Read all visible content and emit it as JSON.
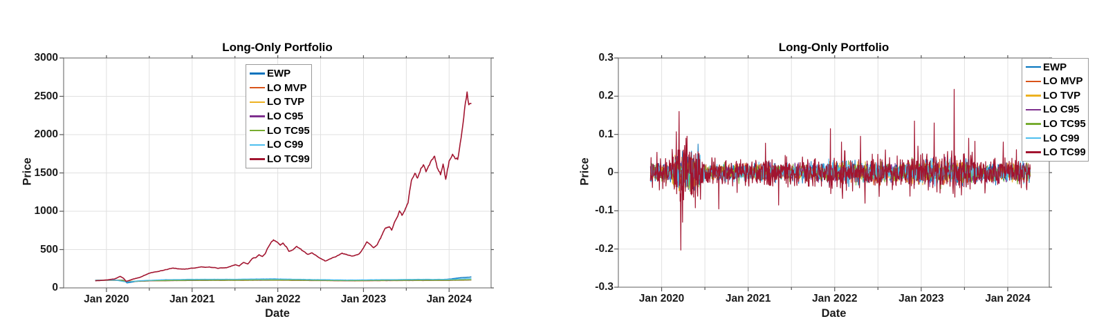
{
  "figure": {
    "background": "#FFFFFF",
    "grid_color": "#E0E0E0",
    "axis_color": "#777777",
    "tick_color": "#555555",
    "text_color": "#1A1A1A",
    "legend_border_color": "#999999",
    "legend_background": "#FFFFFF"
  },
  "palette": {
    "EWP": "#0072BD",
    "LO MVP": "#D95319",
    "LO TVP": "#EDB120",
    "LO C95": "#7E2F8E",
    "LO TC95": "#77AC30",
    "LO C99": "#4DBEEE",
    "LO TC99": "#A2142F"
  },
  "chart_data": [
    {
      "type": "line",
      "title": "Long-Only Portfolio",
      "xlabel": "Date",
      "ylabel": "Price",
      "xlim": [
        2019.5,
        2024.49
      ],
      "ylim": [
        0,
        3000
      ],
      "grid": true,
      "legend_position": "inside-top-center",
      "x_ticks": [
        {
          "x": 2020,
          "label": "Jan 2020"
        },
        {
          "x": 2021,
          "label": "Jan 2021"
        },
        {
          "x": 2022,
          "label": "Jan 2022"
        },
        {
          "x": 2023,
          "label": "Jan 2023"
        },
        {
          "x": 2024,
          "label": "Jan 2024"
        }
      ],
      "x_minor_ticks": [
        2020.5,
        2021.5,
        2022.5,
        2023.5
      ],
      "y_ticks": [
        {
          "v": 0,
          "label": "0"
        },
        {
          "v": 500,
          "label": "500"
        },
        {
          "v": 1000,
          "label": "1000"
        },
        {
          "v": 1500,
          "label": "1500"
        },
        {
          "v": 2000,
          "label": "2000"
        },
        {
          "v": 2500,
          "label": "2500"
        },
        {
          "v": 3000,
          "label": "3000"
        }
      ],
      "series": [
        {
          "name": "EWP",
          "color": "#0072BD",
          "jitter": 1.6,
          "points": [
            [
              2019.87,
              100
            ],
            [
              2020.1,
              103
            ],
            [
              2020.2,
              100
            ],
            [
              2020.24,
              66
            ],
            [
              2020.35,
              85
            ],
            [
              2020.6,
              95
            ],
            [
              2021.0,
              105
            ],
            [
              2021.5,
              110
            ],
            [
              2021.95,
              118
            ],
            [
              2022.3,
              108
            ],
            [
              2022.6,
              98
            ],
            [
              2022.8,
              95
            ],
            [
              2023.1,
              102
            ],
            [
              2023.5,
              108
            ],
            [
              2023.8,
              105
            ],
            [
              2024.0,
              115
            ],
            [
              2024.15,
              135
            ],
            [
              2024.26,
              142
            ]
          ]
        },
        {
          "name": "LO MVP",
          "color": "#D95319",
          "jitter": 1.2,
          "points": [
            [
              2019.87,
              100
            ],
            [
              2020.18,
              98
            ],
            [
              2020.24,
              82
            ],
            [
              2020.5,
              92
            ],
            [
              2021.0,
              97
            ],
            [
              2022.0,
              100
            ],
            [
              2022.8,
              92
            ],
            [
              2023.5,
              96
            ],
            [
              2024.0,
              97
            ],
            [
              2024.26,
              103
            ]
          ]
        },
        {
          "name": "LO TVP",
          "color": "#EDB120",
          "jitter": 1.2,
          "points": [
            [
              2019.87,
              100
            ],
            [
              2020.18,
              99
            ],
            [
              2020.24,
              84
            ],
            [
              2020.5,
              95
            ],
            [
              2021.0,
              99
            ],
            [
              2022.0,
              101
            ],
            [
              2022.8,
              94
            ],
            [
              2023.5,
              97
            ],
            [
              2024.0,
              100
            ],
            [
              2024.26,
              105
            ]
          ]
        },
        {
          "name": "LO C95",
          "color": "#7E2F8E",
          "jitter": 1.2,
          "points": [
            [
              2019.87,
              100
            ],
            [
              2020.18,
              98
            ],
            [
              2020.24,
              80
            ],
            [
              2020.5,
              93
            ],
            [
              2021.0,
              98
            ],
            [
              2022.0,
              102
            ],
            [
              2022.8,
              94
            ],
            [
              2023.5,
              98
            ],
            [
              2024.0,
              100
            ],
            [
              2024.26,
              104
            ]
          ]
        },
        {
          "name": "LO TC95",
          "color": "#77AC30",
          "jitter": 1.2,
          "points": [
            [
              2019.87,
              100
            ],
            [
              2020.18,
              99
            ],
            [
              2020.24,
              81
            ],
            [
              2020.5,
              94
            ],
            [
              2021.0,
              99
            ],
            [
              2022.0,
              103
            ],
            [
              2022.8,
              95
            ],
            [
              2023.5,
              99
            ],
            [
              2024.0,
              101
            ],
            [
              2024.26,
              106
            ]
          ]
        },
        {
          "name": "LO C99",
          "color": "#4DBEEE",
          "jitter": 1.6,
          "points": [
            [
              2019.87,
              100
            ],
            [
              2020.1,
              102
            ],
            [
              2020.24,
              75
            ],
            [
              2020.4,
              95
            ],
            [
              2020.7,
              108
            ],
            [
              2021.0,
              112
            ],
            [
              2021.5,
              113
            ],
            [
              2022.0,
              115
            ],
            [
              2022.5,
              108
            ],
            [
              2022.8,
              103
            ],
            [
              2023.2,
              107
            ],
            [
              2023.6,
              110
            ],
            [
              2024.0,
              112
            ],
            [
              2024.26,
              122
            ]
          ]
        },
        {
          "name": "LO TC99",
          "color": "#A2142F",
          "jitter_rel": 0.02,
          "points": [
            [
              2019.87,
              92
            ],
            [
              2019.95,
              98
            ],
            [
              2020.0,
              105
            ],
            [
              2020.06,
              112
            ],
            [
              2020.1,
              118
            ],
            [
              2020.16,
              150
            ],
            [
              2020.2,
              125
            ],
            [
              2020.23,
              85
            ],
            [
              2020.3,
              110
            ],
            [
              2020.4,
              140
            ],
            [
              2020.5,
              195
            ],
            [
              2020.6,
              215
            ],
            [
              2020.7,
              240
            ],
            [
              2020.78,
              260
            ],
            [
              2020.85,
              245
            ],
            [
              2020.95,
              250
            ],
            [
              2021.0,
              255
            ],
            [
              2021.1,
              270
            ],
            [
              2021.15,
              262
            ],
            [
              2021.2,
              272
            ],
            [
              2021.3,
              258
            ],
            [
              2021.4,
              262
            ],
            [
              2021.5,
              300
            ],
            [
              2021.55,
              285
            ],
            [
              2021.6,
              330
            ],
            [
              2021.65,
              310
            ],
            [
              2021.7,
              380
            ],
            [
              2021.75,
              400
            ],
            [
              2021.78,
              430
            ],
            [
              2021.82,
              415
            ],
            [
              2021.85,
              450
            ],
            [
              2021.88,
              520
            ],
            [
              2021.92,
              600
            ],
            [
              2021.95,
              630
            ],
            [
              2022.0,
              590
            ],
            [
              2022.03,
              560
            ],
            [
              2022.06,
              590
            ],
            [
              2022.1,
              540
            ],
            [
              2022.13,
              480
            ],
            [
              2022.18,
              500
            ],
            [
              2022.22,
              540
            ],
            [
              2022.27,
              500
            ],
            [
              2022.3,
              470
            ],
            [
              2022.35,
              430
            ],
            [
              2022.4,
              450
            ],
            [
              2022.45,
              415
            ],
            [
              2022.5,
              390
            ],
            [
              2022.55,
              355
            ],
            [
              2022.6,
              370
            ],
            [
              2022.65,
              395
            ],
            [
              2022.7,
              420
            ],
            [
              2022.75,
              455
            ],
            [
              2022.8,
              440
            ],
            [
              2022.85,
              415
            ],
            [
              2022.9,
              425
            ],
            [
              2022.95,
              440
            ],
            [
              2023.0,
              520
            ],
            [
              2023.04,
              600
            ],
            [
              2023.08,
              560
            ],
            [
              2023.12,
              520
            ],
            [
              2023.16,
              560
            ],
            [
              2023.2,
              640
            ],
            [
              2023.25,
              780
            ],
            [
              2023.3,
              800
            ],
            [
              2023.33,
              760
            ],
            [
              2023.38,
              900
            ],
            [
              2023.42,
              1000
            ],
            [
              2023.45,
              950
            ],
            [
              2023.48,
              1000
            ],
            [
              2023.52,
              1100
            ],
            [
              2023.56,
              1400
            ],
            [
              2023.6,
              1500
            ],
            [
              2023.63,
              1440
            ],
            [
              2023.67,
              1560
            ],
            [
              2023.7,
              1620
            ],
            [
              2023.73,
              1500
            ],
            [
              2023.76,
              1560
            ],
            [
              2023.8,
              1680
            ],
            [
              2023.83,
              1700
            ],
            [
              2023.86,
              1560
            ],
            [
              2023.9,
              1480
            ],
            [
              2023.93,
              1600
            ],
            [
              2023.96,
              1420
            ],
            [
              2024.0,
              1650
            ],
            [
              2024.04,
              1730
            ],
            [
              2024.07,
              1700
            ],
            [
              2024.1,
              1680
            ],
            [
              2024.13,
              1900
            ],
            [
              2024.16,
              2100
            ],
            [
              2024.19,
              2400
            ],
            [
              2024.21,
              2550
            ],
            [
              2024.23,
              2380
            ],
            [
              2024.26,
              2430
            ]
          ]
        }
      ]
    },
    {
      "type": "line-noise",
      "title": "Long-Only Portfolio",
      "xlabel": "Date",
      "ylabel": "Price",
      "xlim": [
        2019.5,
        2024.48
      ],
      "ylim": [
        -0.3,
        0.3
      ],
      "grid": true,
      "legend_position": "outside-top-right",
      "x_ticks": [
        {
          "x": 2020,
          "label": "Jan 2020"
        },
        {
          "x": 2021,
          "label": "Jan 2021"
        },
        {
          "x": 2022,
          "label": "Jan 2022"
        },
        {
          "x": 2023,
          "label": "Jan 2023"
        },
        {
          "x": 2024,
          "label": "Jan 2024"
        }
      ],
      "x_minor_ticks": [
        2020.5,
        2021.5,
        2022.5,
        2023.5
      ],
      "y_ticks": [
        {
          "v": -0.3,
          "label": "-0.3"
        },
        {
          "v": -0.2,
          "label": "-0.2"
        },
        {
          "v": -0.1,
          "label": "-0.1"
        },
        {
          "v": 0,
          "label": "0"
        },
        {
          "v": 0.1,
          "label": "0.1"
        },
        {
          "v": 0.2,
          "label": "0.2"
        },
        {
          "v": 0.3,
          "label": "0.3"
        }
      ],
      "noise": {
        "x_start": 2019.87,
        "x_end": 2024.26,
        "n_points": 1100,
        "base_std": 0.018,
        "envelope": [
          {
            "from": 2019.87,
            "to": 2020.13,
            "std": 0.02
          },
          {
            "from": 2020.13,
            "to": 2020.45,
            "std": 0.042
          },
          {
            "from": 2020.45,
            "to": 2021.9,
            "std": 0.018
          },
          {
            "from": 2021.9,
            "to": 2022.55,
            "std": 0.024
          },
          {
            "from": 2022.55,
            "to": 2022.85,
            "std": 0.02
          },
          {
            "from": 2022.85,
            "to": 2023.65,
            "std": 0.026
          },
          {
            "from": 2023.65,
            "to": 2024.26,
            "std": 0.021
          }
        ],
        "series_scale": {
          "EWP": 0.6,
          "LO MVP": 0.5,
          "LO TVP": 0.5,
          "LO C95": 0.52,
          "LO TC95": 0.52,
          "LO C99": 0.58,
          "LO TC99": 1.0
        }
      },
      "spikes_lo_tc99": [
        [
          2020.17,
          0.107
        ],
        [
          2020.2,
          0.16
        ],
        [
          2020.22,
          -0.203
        ],
        [
          2020.24,
          -0.13
        ],
        [
          2020.28,
          0.09
        ],
        [
          2020.45,
          -0.07
        ],
        [
          2020.66,
          -0.095
        ],
        [
          2021.2,
          0.077
        ],
        [
          2021.35,
          -0.085
        ],
        [
          2021.95,
          0.115
        ],
        [
          2022.08,
          0.08
        ],
        [
          2022.3,
          0.095
        ],
        [
          2022.35,
          -0.08
        ],
        [
          2022.92,
          0.135
        ],
        [
          2023.15,
          0.13
        ],
        [
          2023.38,
          0.218
        ],
        [
          2023.55,
          0.09
        ],
        [
          2023.62,
          0.082
        ],
        [
          2023.95,
          0.08
        ],
        [
          2024.1,
          0.06
        ],
        [
          2024.22,
          -0.045
        ]
      ],
      "series": [
        {
          "name": "EWP",
          "color": "#0072BD"
        },
        {
          "name": "LO MVP",
          "color": "#D95319"
        },
        {
          "name": "LO TVP",
          "color": "#EDB120"
        },
        {
          "name": "LO C95",
          "color": "#7E2F8E"
        },
        {
          "name": "LO TC95",
          "color": "#77AC30"
        },
        {
          "name": "LO C99",
          "color": "#4DBEEE"
        },
        {
          "name": "LO TC99",
          "color": "#A2142F"
        }
      ]
    }
  ]
}
